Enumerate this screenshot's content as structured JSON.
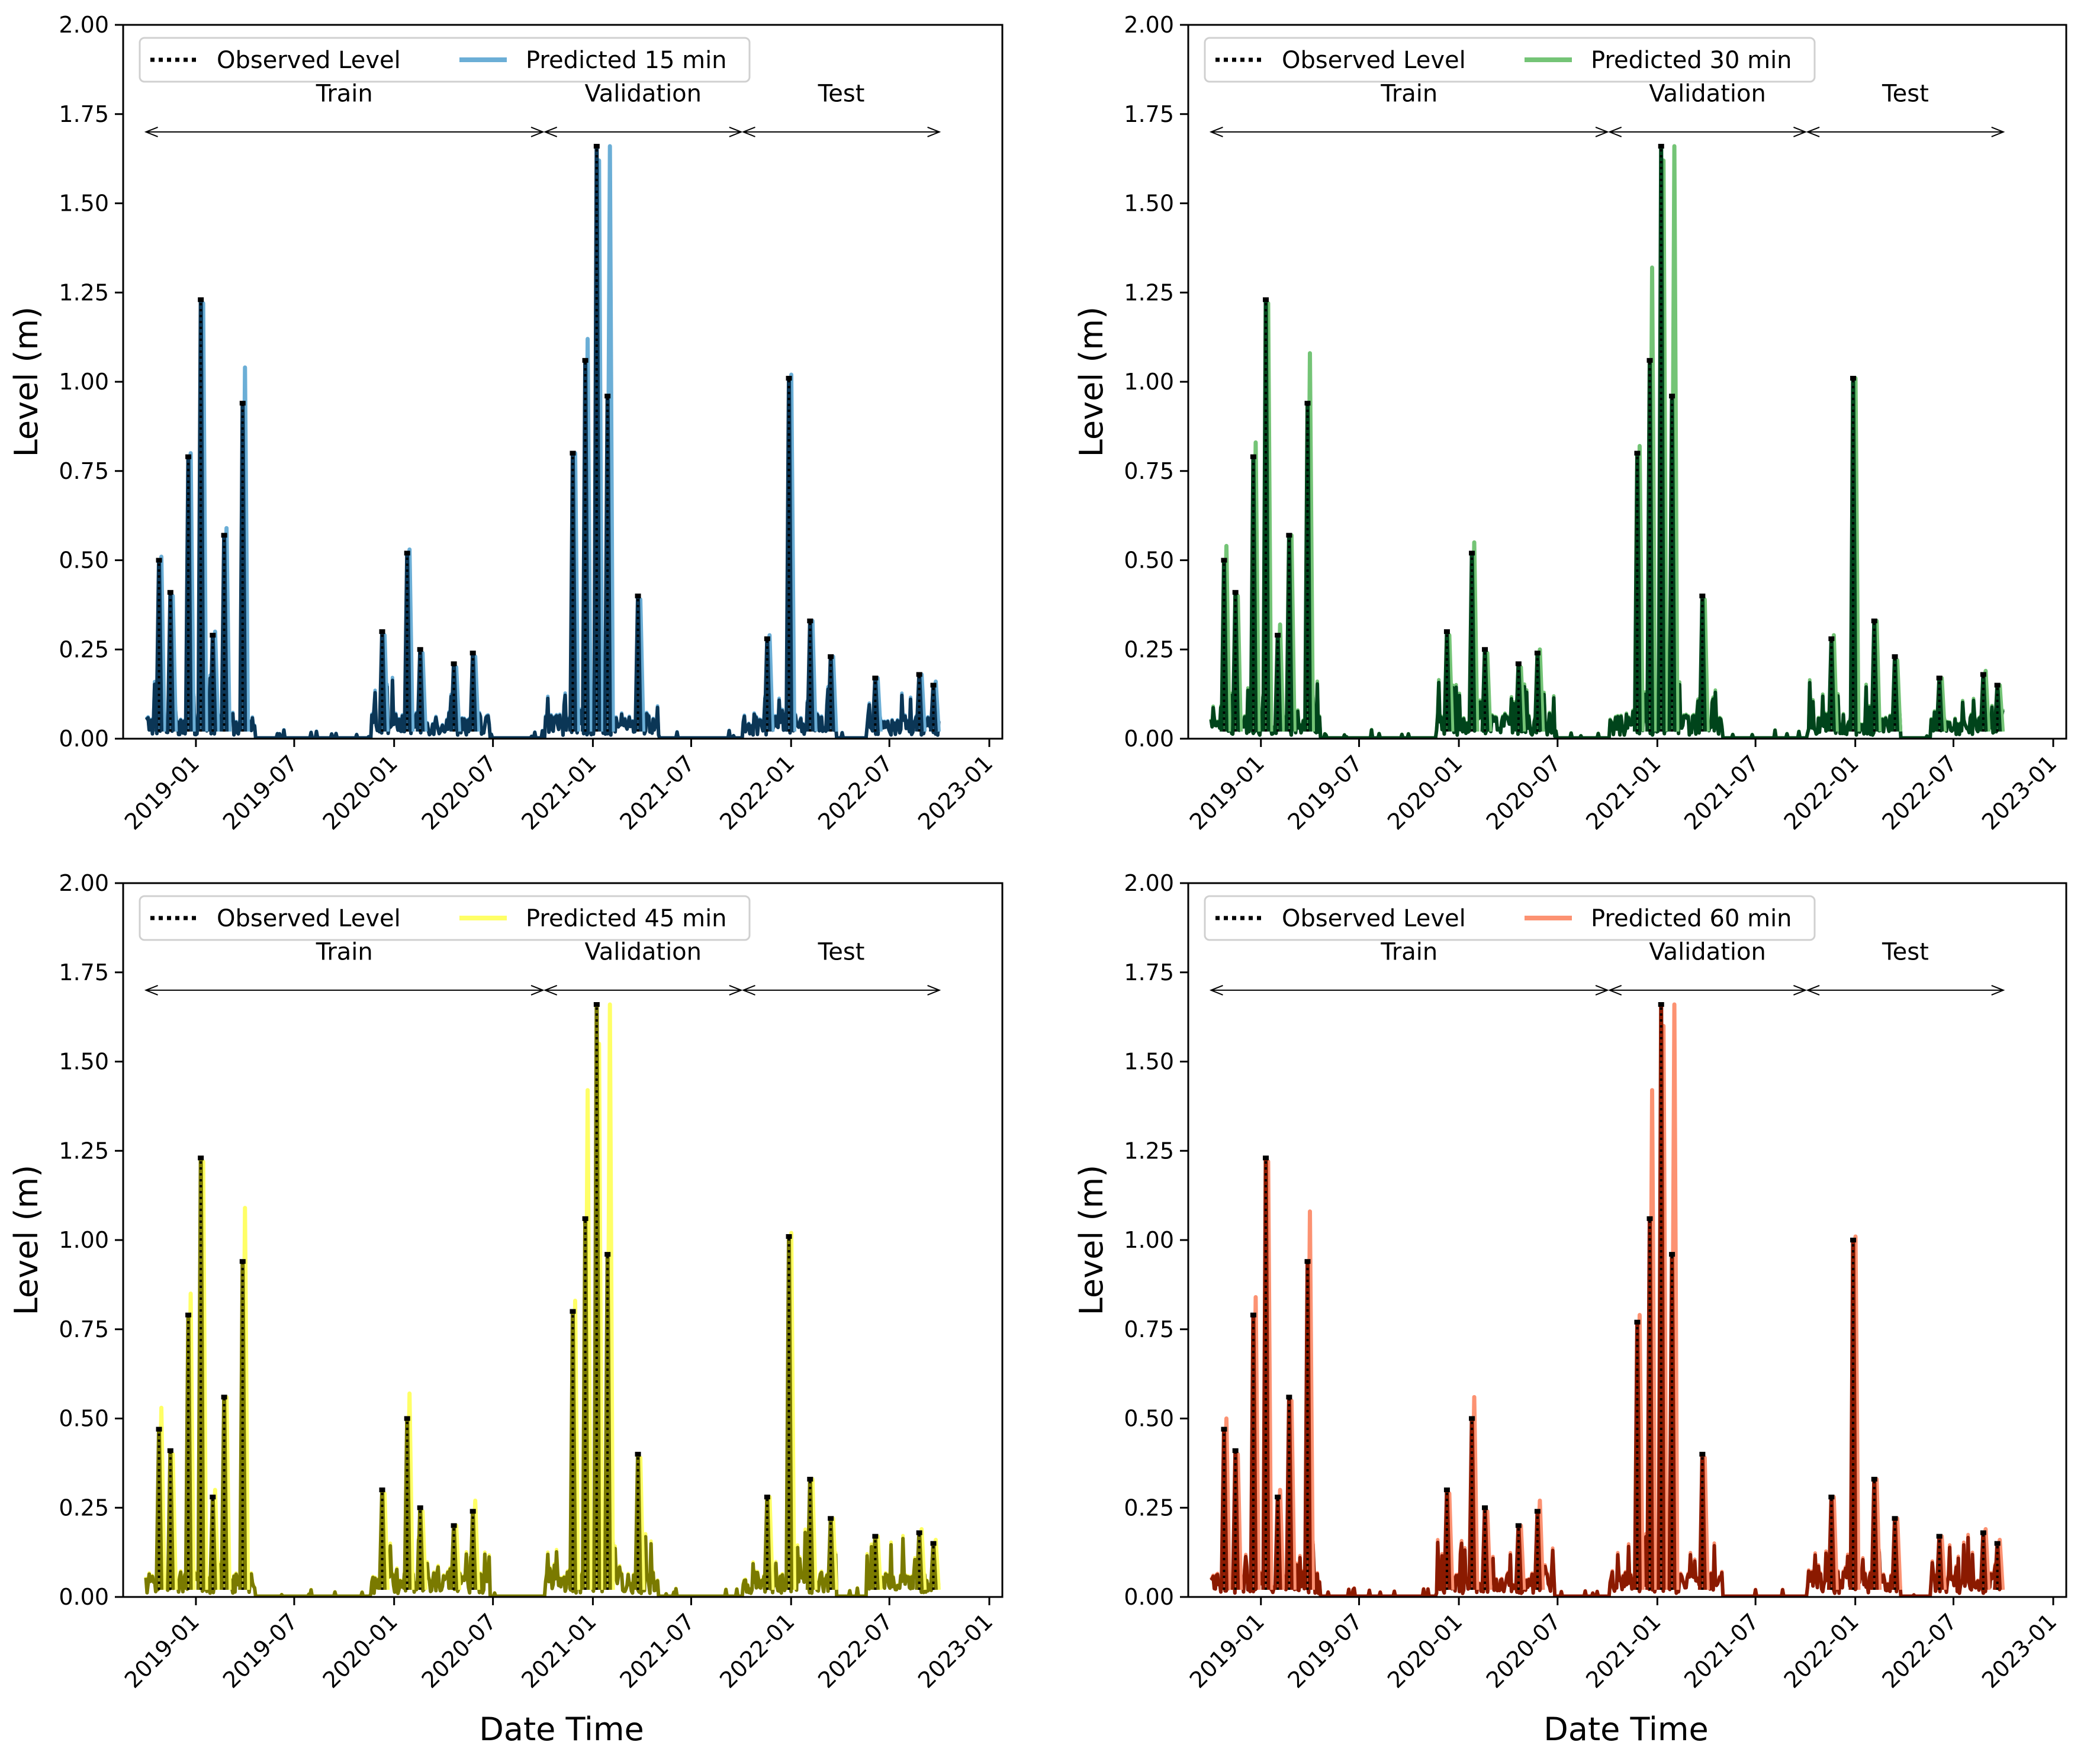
{
  "chart_data": [
    {
      "type": "line",
      "xlabel": "",
      "ylabel": "Level (m)",
      "ylim": [
        0,
        2.0
      ],
      "xlim": [
        "2018-08-20",
        "2023-01-25"
      ],
      "grid": false,
      "legend_position": "top-left",
      "yticks": [
        "0.00",
        "0.25",
        "0.50",
        "0.75",
        "1.00",
        "1.25",
        "1.50",
        "1.75",
        "2.00"
      ],
      "xticks": [
        "2019-01",
        "2019-07",
        "2020-01",
        "2020-07",
        "2021-01",
        "2021-07",
        "2022-01",
        "2022-07",
        "2023-01"
      ],
      "regions": [
        {
          "label": "Train",
          "start": "2018-10-01",
          "end": "2020-10-01"
        },
        {
          "label": "Validation",
          "start": "2020-10-05",
          "end": "2021-10-01"
        },
        {
          "label": "Test",
          "start": "2021-10-05",
          "end": "2022-10-01"
        }
      ],
      "series": [
        {
          "name": "Observed Level",
          "color": "#000000",
          "style": "dotted"
        },
        {
          "name": "Predicted 15 min",
          "color": "#6baed6",
          "style": "solid"
        }
      ],
      "observed_color": "#0b3656",
      "peaks": [
        {
          "x": "2018-10-25",
          "observed": 0.5,
          "predicted": 0.51
        },
        {
          "x": "2018-11-15",
          "observed": 0.41,
          "predicted": 0.4
        },
        {
          "x": "2018-12-18",
          "observed": 0.79,
          "predicted": 0.8
        },
        {
          "x": "2019-01-10",
          "observed": 1.23,
          "predicted": 1.22
        },
        {
          "x": "2019-02-01",
          "observed": 0.29,
          "predicted": 0.3
        },
        {
          "x": "2019-02-22",
          "observed": 0.57,
          "predicted": 0.59
        },
        {
          "x": "2019-03-28",
          "observed": 0.94,
          "predicted": 1.04
        },
        {
          "x": "2019-12-10",
          "observed": 0.3,
          "predicted": 0.29
        },
        {
          "x": "2020-01-25",
          "observed": 0.52,
          "predicted": 0.53
        },
        {
          "x": "2020-02-18",
          "observed": 0.25,
          "predicted": 0.24
        },
        {
          "x": "2020-04-20",
          "observed": 0.21,
          "predicted": 0.2
        },
        {
          "x": "2020-05-25",
          "observed": 0.24,
          "predicted": 0.23
        },
        {
          "x": "2020-11-25",
          "observed": 0.8,
          "predicted": 0.8
        },
        {
          "x": "2020-12-18",
          "observed": 1.06,
          "predicted": 1.12
        },
        {
          "x": "2021-01-08",
          "observed": 1.66,
          "predicted": 1.62
        },
        {
          "x": "2021-01-28",
          "observed": 0.96,
          "predicted": 1.66
        },
        {
          "x": "2021-03-25",
          "observed": 0.4,
          "predicted": 0.39
        },
        {
          "x": "2021-11-18",
          "observed": 0.28,
          "predicted": 0.29
        },
        {
          "x": "2021-12-28",
          "observed": 1.01,
          "predicted": 1.02
        },
        {
          "x": "2022-02-05",
          "observed": 0.33,
          "predicted": 0.33
        },
        {
          "x": "2022-03-15",
          "observed": 0.23,
          "predicted": 0.23
        },
        {
          "x": "2022-06-05",
          "observed": 0.17,
          "predicted": 0.17
        },
        {
          "x": "2022-08-25",
          "observed": 0.18,
          "predicted": 0.18
        },
        {
          "x": "2022-09-20",
          "observed": 0.15,
          "predicted": 0.16
        }
      ]
    },
    {
      "type": "line",
      "xlabel": "",
      "ylabel": "Level (m)",
      "ylim": [
        0,
        2.0
      ],
      "xlim": [
        "2018-08-20",
        "2023-01-25"
      ],
      "grid": false,
      "legend_position": "top-left",
      "yticks": [
        "0.00",
        "0.25",
        "0.50",
        "0.75",
        "1.00",
        "1.25",
        "1.50",
        "1.75",
        "2.00"
      ],
      "xticks": [
        "2019-01",
        "2019-07",
        "2020-01",
        "2020-07",
        "2021-01",
        "2021-07",
        "2022-01",
        "2022-07",
        "2023-01"
      ],
      "regions": [
        {
          "label": "Train",
          "start": "2018-10-01",
          "end": "2020-10-01"
        },
        {
          "label": "Validation",
          "start": "2020-10-05",
          "end": "2021-10-01"
        },
        {
          "label": "Test",
          "start": "2021-10-05",
          "end": "2022-10-01"
        }
      ],
      "series": [
        {
          "name": "Observed Level",
          "color": "#000000",
          "style": "dotted"
        },
        {
          "name": "Predicted 30 min",
          "color": "#74c476",
          "style": "solid"
        }
      ],
      "observed_color": "#00441b",
      "peaks": [
        {
          "x": "2018-10-25",
          "observed": 0.5,
          "predicted": 0.54
        },
        {
          "x": "2018-11-15",
          "observed": 0.41,
          "predicted": 0.4
        },
        {
          "x": "2018-12-18",
          "observed": 0.79,
          "predicted": 0.83
        },
        {
          "x": "2019-01-10",
          "observed": 1.23,
          "predicted": 1.22
        },
        {
          "x": "2019-02-01",
          "observed": 0.29,
          "predicted": 0.32
        },
        {
          "x": "2019-02-22",
          "observed": 0.57,
          "predicted": 0.57
        },
        {
          "x": "2019-03-28",
          "observed": 0.94,
          "predicted": 1.08
        },
        {
          "x": "2019-12-10",
          "observed": 0.3,
          "predicted": 0.29
        },
        {
          "x": "2020-01-25",
          "observed": 0.52,
          "predicted": 0.55
        },
        {
          "x": "2020-02-18",
          "observed": 0.25,
          "predicted": 0.24
        },
        {
          "x": "2020-04-20",
          "observed": 0.21,
          "predicted": 0.2
        },
        {
          "x": "2020-05-25",
          "observed": 0.24,
          "predicted": 0.25
        },
        {
          "x": "2020-11-25",
          "observed": 0.8,
          "predicted": 0.82
        },
        {
          "x": "2020-12-18",
          "observed": 1.06,
          "predicted": 1.32
        },
        {
          "x": "2021-01-08",
          "observed": 1.66,
          "predicted": 1.62
        },
        {
          "x": "2021-01-28",
          "observed": 0.96,
          "predicted": 1.66
        },
        {
          "x": "2021-03-25",
          "observed": 0.4,
          "predicted": 0.39
        },
        {
          "x": "2021-11-18",
          "observed": 0.28,
          "predicted": 0.29
        },
        {
          "x": "2021-12-28",
          "observed": 1.01,
          "predicted": 1.01
        },
        {
          "x": "2022-02-05",
          "observed": 0.33,
          "predicted": 0.33
        },
        {
          "x": "2022-03-15",
          "observed": 0.23,
          "predicted": 0.22
        },
        {
          "x": "2022-06-05",
          "observed": 0.17,
          "predicted": 0.17
        },
        {
          "x": "2022-08-25",
          "observed": 0.18,
          "predicted": 0.19
        },
        {
          "x": "2022-09-20",
          "observed": 0.15,
          "predicted": 0.15
        }
      ]
    },
    {
      "type": "line",
      "xlabel": "Date Time",
      "ylabel": "Level (m)",
      "ylim": [
        0,
        2.0
      ],
      "xlim": [
        "2018-08-20",
        "2023-01-25"
      ],
      "grid": false,
      "legend_position": "top-left",
      "yticks": [
        "0.00",
        "0.25",
        "0.50",
        "0.75",
        "1.00",
        "1.25",
        "1.50",
        "1.75",
        "2.00"
      ],
      "xticks": [
        "2019-01",
        "2019-07",
        "2020-01",
        "2020-07",
        "2021-01",
        "2021-07",
        "2022-01",
        "2022-07",
        "2023-01"
      ],
      "regions": [
        {
          "label": "Train",
          "start": "2018-10-01",
          "end": "2020-10-01"
        },
        {
          "label": "Validation",
          "start": "2020-10-05",
          "end": "2021-10-01"
        },
        {
          "label": "Test",
          "start": "2021-10-05",
          "end": "2022-10-01"
        }
      ],
      "series": [
        {
          "name": "Observed Level",
          "color": "#000000",
          "style": "dotted"
        },
        {
          "name": "Predicted 45 min",
          "color": "#ffff66",
          "style": "solid"
        }
      ],
      "observed_color": "#7a7a00",
      "peaks": [
        {
          "x": "2018-10-25",
          "observed": 0.47,
          "predicted": 0.53
        },
        {
          "x": "2018-11-15",
          "observed": 0.41,
          "predicted": 0.4
        },
        {
          "x": "2018-12-18",
          "observed": 0.79,
          "predicted": 0.85
        },
        {
          "x": "2019-01-10",
          "observed": 1.23,
          "predicted": 1.22
        },
        {
          "x": "2019-02-01",
          "observed": 0.28,
          "predicted": 0.3
        },
        {
          "x": "2019-02-22",
          "observed": 0.56,
          "predicted": 0.56
        },
        {
          "x": "2019-03-28",
          "observed": 0.94,
          "predicted": 1.09
        },
        {
          "x": "2019-12-10",
          "observed": 0.3,
          "predicted": 0.29
        },
        {
          "x": "2020-01-25",
          "observed": 0.5,
          "predicted": 0.57
        },
        {
          "x": "2020-02-18",
          "observed": 0.25,
          "predicted": 0.24
        },
        {
          "x": "2020-04-20",
          "observed": 0.2,
          "predicted": 0.2
        },
        {
          "x": "2020-05-25",
          "observed": 0.24,
          "predicted": 0.27
        },
        {
          "x": "2020-11-25",
          "observed": 0.8,
          "predicted": 0.83
        },
        {
          "x": "2020-12-18",
          "observed": 1.06,
          "predicted": 1.42
        },
        {
          "x": "2021-01-08",
          "observed": 1.66,
          "predicted": 1.55
        },
        {
          "x": "2021-01-28",
          "observed": 0.96,
          "predicted": 1.66
        },
        {
          "x": "2021-03-25",
          "observed": 0.4,
          "predicted": 0.39
        },
        {
          "x": "2021-11-18",
          "observed": 0.28,
          "predicted": 0.28
        },
        {
          "x": "2021-12-28",
          "observed": 1.01,
          "predicted": 1.02
        },
        {
          "x": "2022-02-05",
          "observed": 0.33,
          "predicted": 0.33
        },
        {
          "x": "2022-03-15",
          "observed": 0.22,
          "predicted": 0.22
        },
        {
          "x": "2022-06-05",
          "observed": 0.17,
          "predicted": 0.17
        },
        {
          "x": "2022-08-25",
          "observed": 0.18,
          "predicted": 0.19
        },
        {
          "x": "2022-09-20",
          "observed": 0.15,
          "predicted": 0.16
        }
      ]
    },
    {
      "type": "line",
      "xlabel": "Date Time",
      "ylabel": "Level (m)",
      "ylim": [
        0,
        2.0
      ],
      "xlim": [
        "2018-08-20",
        "2023-01-25"
      ],
      "grid": false,
      "legend_position": "top-left",
      "yticks": [
        "0.00",
        "0.25",
        "0.50",
        "0.75",
        "1.00",
        "1.25",
        "1.50",
        "1.75",
        "2.00"
      ],
      "xticks": [
        "2019-01",
        "2019-07",
        "2020-01",
        "2020-07",
        "2021-01",
        "2021-07",
        "2022-01",
        "2022-07",
        "2023-01"
      ],
      "regions": [
        {
          "label": "Train",
          "start": "2018-10-01",
          "end": "2020-10-01"
        },
        {
          "label": "Validation",
          "start": "2020-10-05",
          "end": "2021-10-01"
        },
        {
          "label": "Test",
          "start": "2021-10-05",
          "end": "2022-10-01"
        }
      ],
      "series": [
        {
          "name": "Observed Level",
          "color": "#000000",
          "style": "dotted"
        },
        {
          "name": "Predicted 60 min",
          "color": "#fc9272",
          "style": "solid"
        }
      ],
      "observed_color": "#8b1a00",
      "peaks": [
        {
          "x": "2018-10-25",
          "observed": 0.47,
          "predicted": 0.5
        },
        {
          "x": "2018-11-15",
          "observed": 0.41,
          "predicted": 0.4
        },
        {
          "x": "2018-12-18",
          "observed": 0.79,
          "predicted": 0.84
        },
        {
          "x": "2019-01-10",
          "observed": 1.23,
          "predicted": 1.22
        },
        {
          "x": "2019-02-01",
          "observed": 0.28,
          "predicted": 0.3
        },
        {
          "x": "2019-02-22",
          "observed": 0.56,
          "predicted": 0.55
        },
        {
          "x": "2019-03-28",
          "observed": 0.94,
          "predicted": 1.08
        },
        {
          "x": "2019-12-10",
          "observed": 0.3,
          "predicted": 0.29
        },
        {
          "x": "2020-01-25",
          "observed": 0.5,
          "predicted": 0.56
        },
        {
          "x": "2020-02-18",
          "observed": 0.25,
          "predicted": 0.24
        },
        {
          "x": "2020-04-20",
          "observed": 0.2,
          "predicted": 0.2
        },
        {
          "x": "2020-05-25",
          "observed": 0.24,
          "predicted": 0.27
        },
        {
          "x": "2020-11-25",
          "observed": 0.77,
          "predicted": 0.79
        },
        {
          "x": "2020-12-18",
          "observed": 1.06,
          "predicted": 1.42
        },
        {
          "x": "2021-01-08",
          "observed": 1.66,
          "predicted": 1.6
        },
        {
          "x": "2021-01-28",
          "observed": 0.96,
          "predicted": 1.66
        },
        {
          "x": "2021-03-25",
          "observed": 0.4,
          "predicted": 0.39
        },
        {
          "x": "2021-11-18",
          "observed": 0.28,
          "predicted": 0.28
        },
        {
          "x": "2021-12-28",
          "observed": 1.0,
          "predicted": 1.01
        },
        {
          "x": "2022-02-05",
          "observed": 0.33,
          "predicted": 0.33
        },
        {
          "x": "2022-03-15",
          "observed": 0.22,
          "predicted": 0.22
        },
        {
          "x": "2022-06-05",
          "observed": 0.17,
          "predicted": 0.17
        },
        {
          "x": "2022-08-25",
          "observed": 0.18,
          "predicted": 0.19
        },
        {
          "x": "2022-09-20",
          "observed": 0.15,
          "predicted": 0.16
        }
      ]
    }
  ]
}
